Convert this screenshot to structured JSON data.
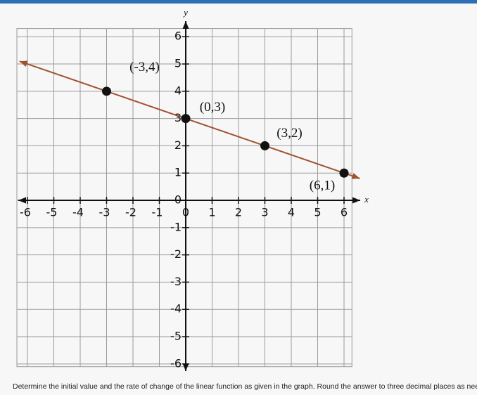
{
  "chart_data": {
    "type": "line",
    "x": [
      -3,
      0,
      3,
      6
    ],
    "values": [
      4,
      3,
      2,
      1
    ],
    "point_labels": [
      "(-3,4)",
      "(0,3)",
      "(3,2)",
      "(6,1)"
    ],
    "color": "#a0522d",
    "marker_color": "#111111",
    "x_label": "x",
    "y_label": "y",
    "xlim": [
      -6.4,
      6.3
    ],
    "ylim": [
      -6.1,
      6.3
    ],
    "xticks": [
      -6,
      -5,
      -4,
      -3,
      -2,
      -1,
      0,
      1,
      2,
      3,
      4,
      5,
      6
    ],
    "yticks": [
      -6,
      -5,
      -4,
      -3,
      -2,
      -1,
      0,
      1,
      2,
      3,
      4,
      5,
      6
    ],
    "grid": true
  },
  "question": "Determine the initial value and the rate of change of the linear function as given in the graph. Round the answer to three decimal places as needed."
}
